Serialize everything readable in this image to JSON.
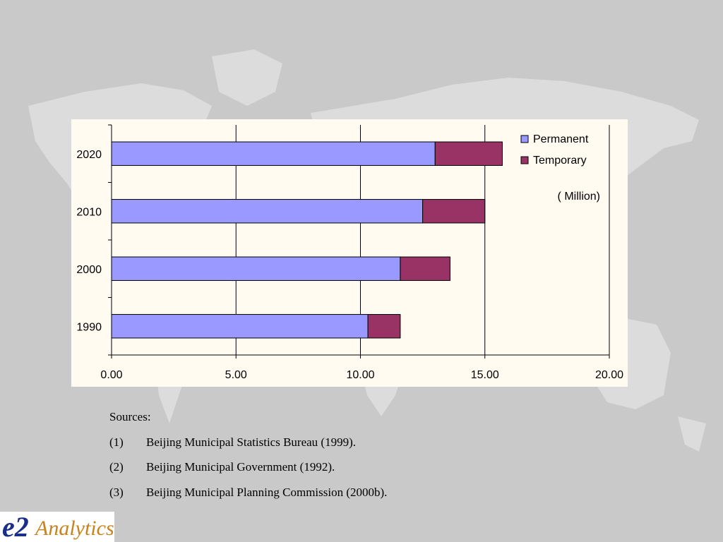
{
  "chart_data": {
    "type": "bar",
    "orientation": "horizontal",
    "stacked": true,
    "categories": [
      "1990",
      "2000",
      "2010",
      "2020"
    ],
    "series": [
      {
        "name": "Permanent",
        "values": [
          10.3,
          11.6,
          12.5,
          13.0
        ],
        "color": "#9999ff"
      },
      {
        "name": "Temporary",
        "values": [
          1.3,
          2.0,
          2.5,
          2.7
        ],
        "color": "#993366"
      }
    ],
    "unit_label": "( Million)",
    "xlim": [
      0,
      20
    ],
    "x_ticks": [
      "0.00",
      "5.00",
      "10.00",
      "15.00",
      "20.00"
    ],
    "grid": "vertical",
    "legend_position": "top-right"
  },
  "sources": {
    "heading": "Sources:",
    "items": [
      {
        "num": "(1)",
        "text": "Beijing Municipal Statistics Bureau (1999)."
      },
      {
        "num": "(2)",
        "text": "Beijing Municipal Government (1992)."
      },
      {
        "num": "(3)",
        "text": "Beijing Municipal Planning Commission (2000b)."
      }
    ]
  },
  "logo": {
    "mark": "e2",
    "word": "Analytics",
    "mark_color": "#1a2f8a",
    "word_color": "#c8821e"
  }
}
